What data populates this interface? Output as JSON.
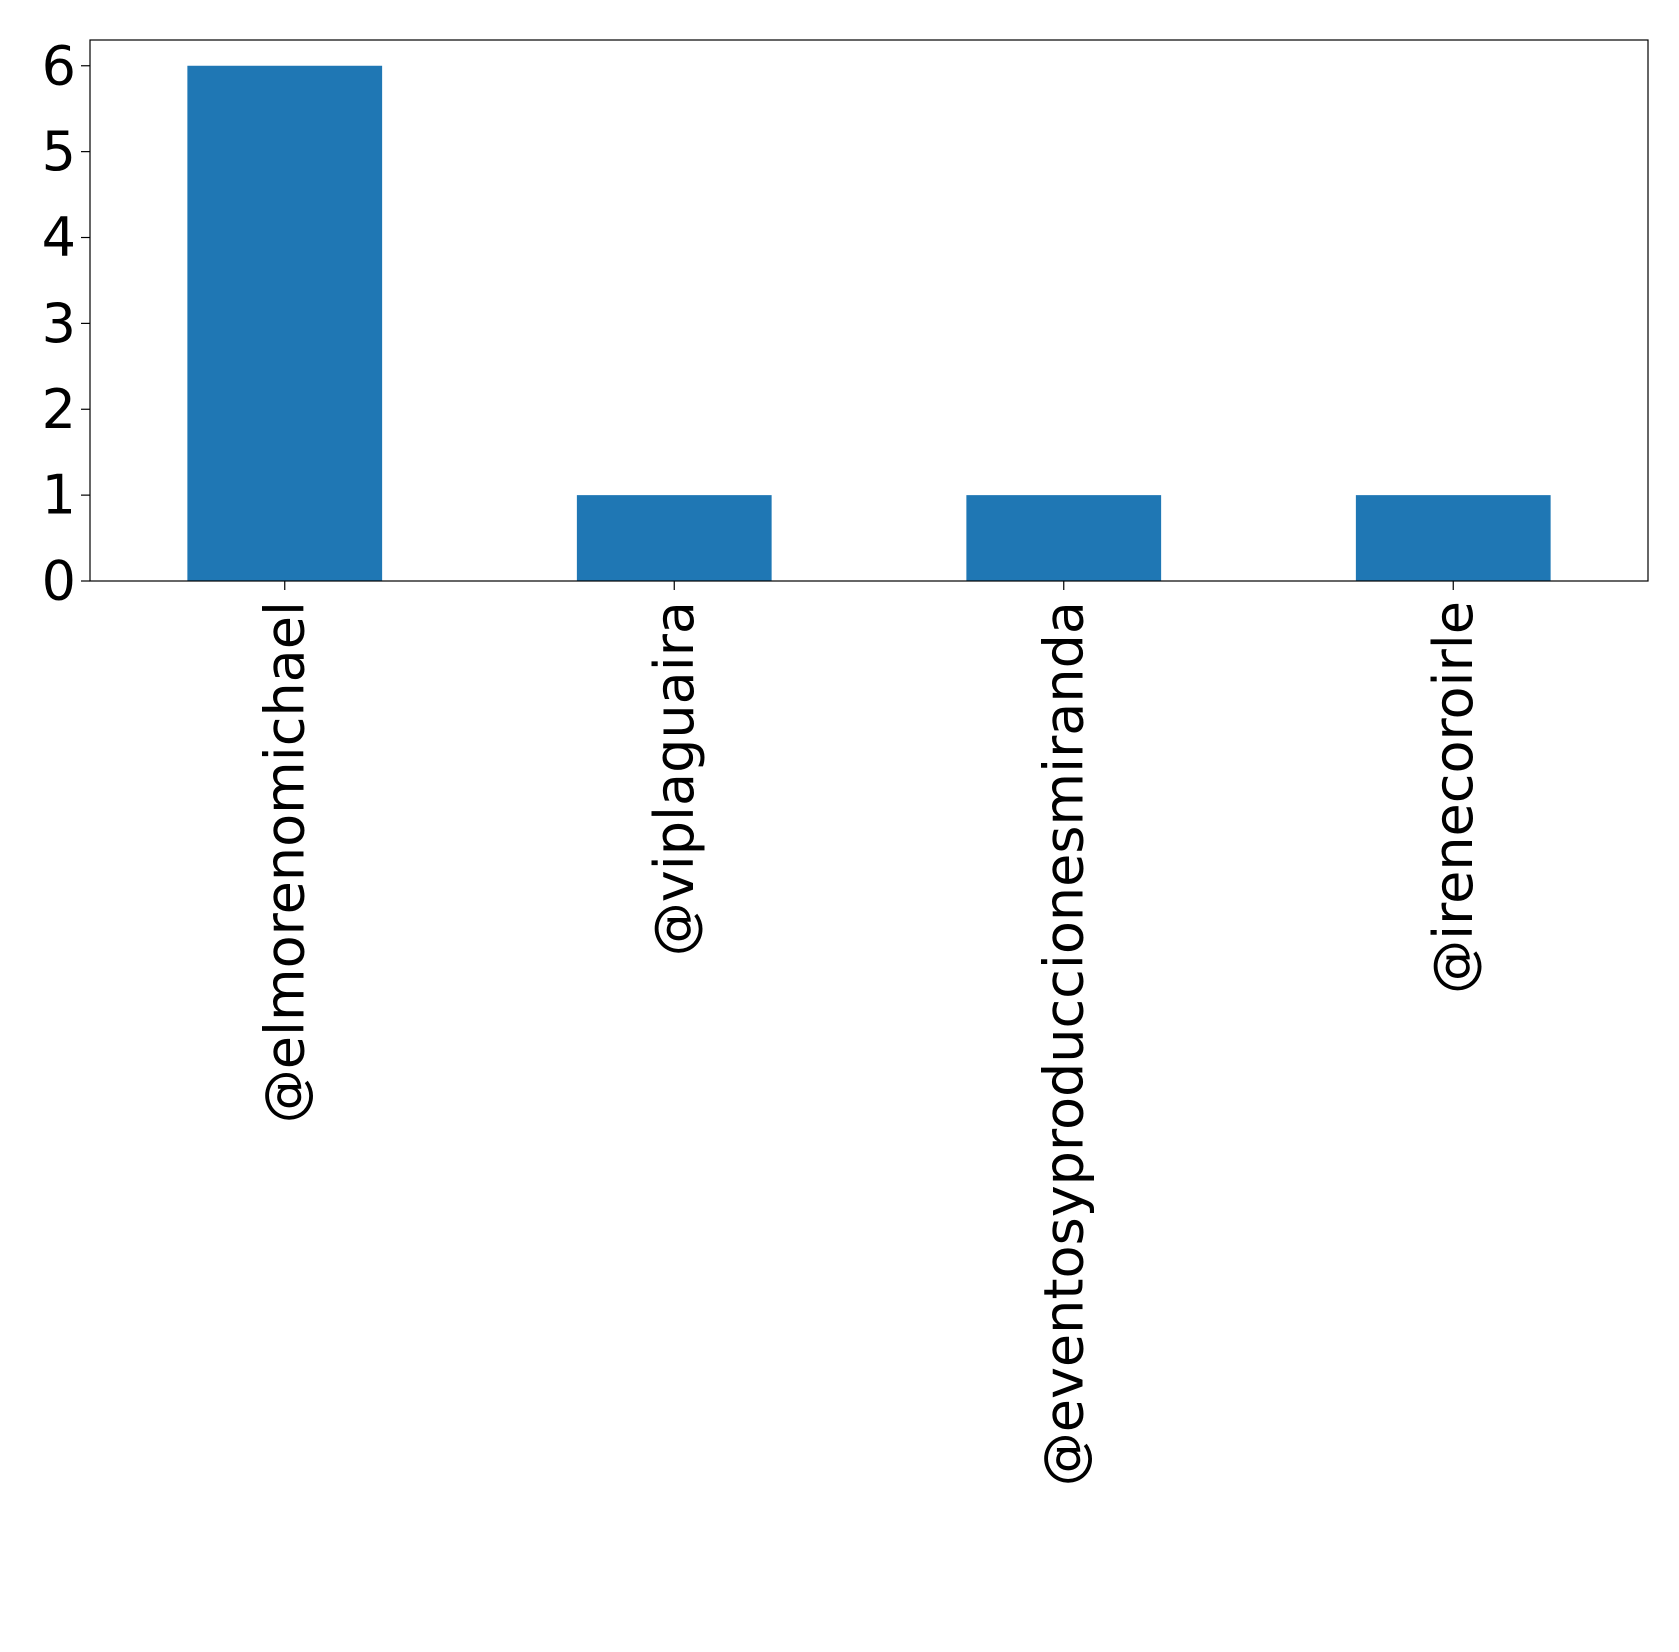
{
  "chart_data": {
    "type": "bar",
    "categories": [
      "@elmorenomichael",
      "@viplaguaira",
      "@eventosyproduccionesmiranda",
      "@irenecoroirle"
    ],
    "values": [
      6,
      1,
      1,
      1
    ],
    "color": "#1f77b4",
    "ylim": [
      0,
      6.3
    ],
    "yticks": [
      0,
      1,
      2,
      3,
      4,
      5,
      6
    ],
    "grid": false
  }
}
